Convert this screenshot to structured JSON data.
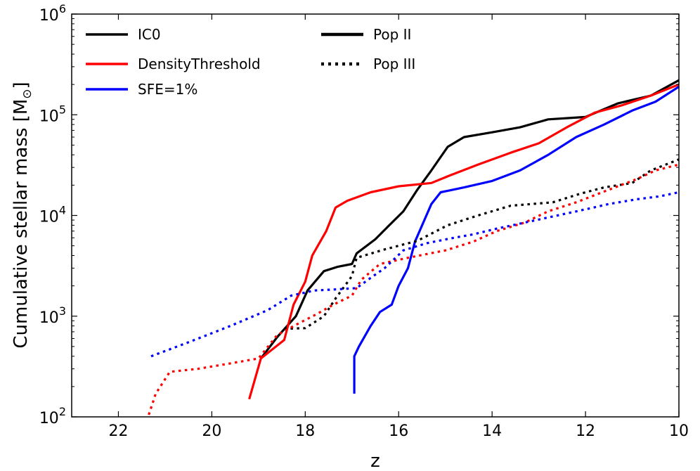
{
  "chart_data": {
    "type": "line",
    "xlabel": "z",
    "ylabel": "Cumulative stellar mass [M",
    "ylabel_symbol": "⊙",
    "ylabel_close": "]",
    "xlim": [
      23,
      10
    ],
    "ylim": [
      100,
      1000000
    ],
    "yscale": "log",
    "x_ticks": [
      22,
      20,
      18,
      16,
      14,
      12,
      10
    ],
    "y_ticks": [
      {
        "value": 100,
        "base": "10",
        "exp": "2"
      },
      {
        "value": 1000,
        "base": "10",
        "exp": "3"
      },
      {
        "value": 10000,
        "base": "10",
        "exp": "4"
      },
      {
        "value": 100000,
        "base": "10",
        "exp": "5"
      },
      {
        "value": 1000000,
        "base": "10",
        "exp": "6"
      }
    ],
    "legend": {
      "placement": "top-left",
      "runs": [
        {
          "label": "IC0",
          "color": "#000000"
        },
        {
          "label": "DensityThreshold",
          "color": "#ff0000"
        },
        {
          "label": "SFE=1%",
          "color": "#0000ff"
        }
      ],
      "styles": [
        {
          "label": "Pop II",
          "dash": "solid"
        },
        {
          "label": "Pop III",
          "dash": "dotted"
        }
      ]
    },
    "series": [
      {
        "name": "IC0 Pop II",
        "color": "#000000",
        "dash": "solid",
        "points": [
          [
            18.95,
            380
          ],
          [
            18.6,
            620
          ],
          [
            18.2,
            1000
          ],
          [
            17.95,
            1800
          ],
          [
            17.6,
            2800
          ],
          [
            17.3,
            3100
          ],
          [
            17.0,
            3300
          ],
          [
            16.9,
            4200
          ],
          [
            16.5,
            5800
          ],
          [
            16.2,
            8000
          ],
          [
            15.9,
            11000
          ],
          [
            15.6,
            18000
          ],
          [
            15.3,
            28000
          ],
          [
            14.95,
            48000
          ],
          [
            14.6,
            60000
          ],
          [
            14.0,
            67000
          ],
          [
            13.4,
            75000
          ],
          [
            12.8,
            90000
          ],
          [
            12.0,
            95000
          ],
          [
            11.3,
            130000
          ],
          [
            10.6,
            155000
          ],
          [
            10.0,
            220000
          ]
        ]
      },
      {
        "name": "DensityThreshold Pop II",
        "color": "#ff0000",
        "dash": "solid",
        "points": [
          [
            19.2,
            150
          ],
          [
            18.95,
            380
          ],
          [
            18.45,
            580
          ],
          [
            18.25,
            1300
          ],
          [
            18.0,
            2200
          ],
          [
            17.85,
            4000
          ],
          [
            17.55,
            7000
          ],
          [
            17.35,
            12000
          ],
          [
            17.1,
            14000
          ],
          [
            16.6,
            17000
          ],
          [
            16.0,
            19500
          ],
          [
            15.3,
            21000
          ],
          [
            14.9,
            25000
          ],
          [
            14.3,
            32000
          ],
          [
            13.6,
            42000
          ],
          [
            13.0,
            52000
          ],
          [
            12.4,
            75000
          ],
          [
            11.8,
            105000
          ],
          [
            11.2,
            125000
          ],
          [
            10.6,
            155000
          ],
          [
            10.0,
            200000
          ]
        ]
      },
      {
        "name": "SFE=1% Pop II",
        "color": "#0000ff",
        "dash": "solid",
        "points": [
          [
            16.95,
            170
          ],
          [
            16.95,
            400
          ],
          [
            16.85,
            500
          ],
          [
            16.6,
            800
          ],
          [
            16.4,
            1100
          ],
          [
            16.15,
            1300
          ],
          [
            16.0,
            2000
          ],
          [
            15.8,
            3000
          ],
          [
            15.65,
            5500
          ],
          [
            15.45,
            9000
          ],
          [
            15.3,
            13000
          ],
          [
            15.1,
            17000
          ],
          [
            14.6,
            19000
          ],
          [
            14.0,
            22000
          ],
          [
            13.4,
            28000
          ],
          [
            12.8,
            40000
          ],
          [
            12.2,
            60000
          ],
          [
            11.6,
            80000
          ],
          [
            11.0,
            110000
          ],
          [
            10.5,
            135000
          ],
          [
            10.0,
            190000
          ]
        ]
      },
      {
        "name": "IC0 Pop III",
        "color": "#000000",
        "dash": "dotted",
        "points": [
          [
            18.45,
            750
          ],
          [
            18.0,
            760
          ],
          [
            17.6,
            1000
          ],
          [
            17.35,
            1500
          ],
          [
            17.0,
            2500
          ],
          [
            16.9,
            3800
          ],
          [
            16.3,
            4600
          ],
          [
            15.6,
            5600
          ],
          [
            14.95,
            8000
          ],
          [
            14.3,
            10000
          ],
          [
            13.6,
            12500
          ],
          [
            12.7,
            13500
          ],
          [
            12.1,
            16500
          ],
          [
            11.6,
            19000
          ],
          [
            11.0,
            21000
          ],
          [
            10.6,
            28000
          ],
          [
            10.0,
            36000
          ]
        ]
      },
      {
        "name": "DensityThreshold Pop III",
        "color": "#ff0000",
        "dash": "dotted",
        "points": [
          [
            21.35,
            105
          ],
          [
            21.2,
            170
          ],
          [
            20.9,
            280
          ],
          [
            20.3,
            300
          ],
          [
            19.6,
            340
          ],
          [
            19.0,
            380
          ],
          [
            18.6,
            650
          ],
          [
            18.2,
            820
          ],
          [
            17.75,
            1050
          ],
          [
            17.4,
            1300
          ],
          [
            17.0,
            1600
          ],
          [
            16.8,
            2300
          ],
          [
            16.4,
            3300
          ],
          [
            15.8,
            3800
          ],
          [
            15.0,
            4500
          ],
          [
            14.4,
            5500
          ],
          [
            13.9,
            7000
          ],
          [
            13.3,
            8500
          ],
          [
            12.8,
            11000
          ],
          [
            12.2,
            13500
          ],
          [
            11.5,
            18000
          ],
          [
            10.9,
            23000
          ],
          [
            10.5,
            28000
          ],
          [
            10.0,
            32000
          ]
        ]
      },
      {
        "name": "SFE=1% Pop III",
        "color": "#0000ff",
        "dash": "dotted",
        "points": [
          [
            21.3,
            400
          ],
          [
            20.5,
            550
          ],
          [
            19.6,
            800
          ],
          [
            18.8,
            1150
          ],
          [
            18.3,
            1600
          ],
          [
            17.8,
            1800
          ],
          [
            17.3,
            1850
          ],
          [
            16.9,
            1900
          ],
          [
            16.6,
            2400
          ],
          [
            16.3,
            3000
          ],
          [
            15.9,
            4500
          ],
          [
            15.4,
            5300
          ],
          [
            14.9,
            5900
          ],
          [
            14.4,
            6500
          ],
          [
            13.9,
            7400
          ],
          [
            13.2,
            8700
          ],
          [
            12.6,
            10000
          ],
          [
            12.0,
            11500
          ],
          [
            11.5,
            13000
          ],
          [
            10.9,
            14500
          ],
          [
            10.4,
            15500
          ],
          [
            10.0,
            17000
          ]
        ]
      }
    ]
  }
}
